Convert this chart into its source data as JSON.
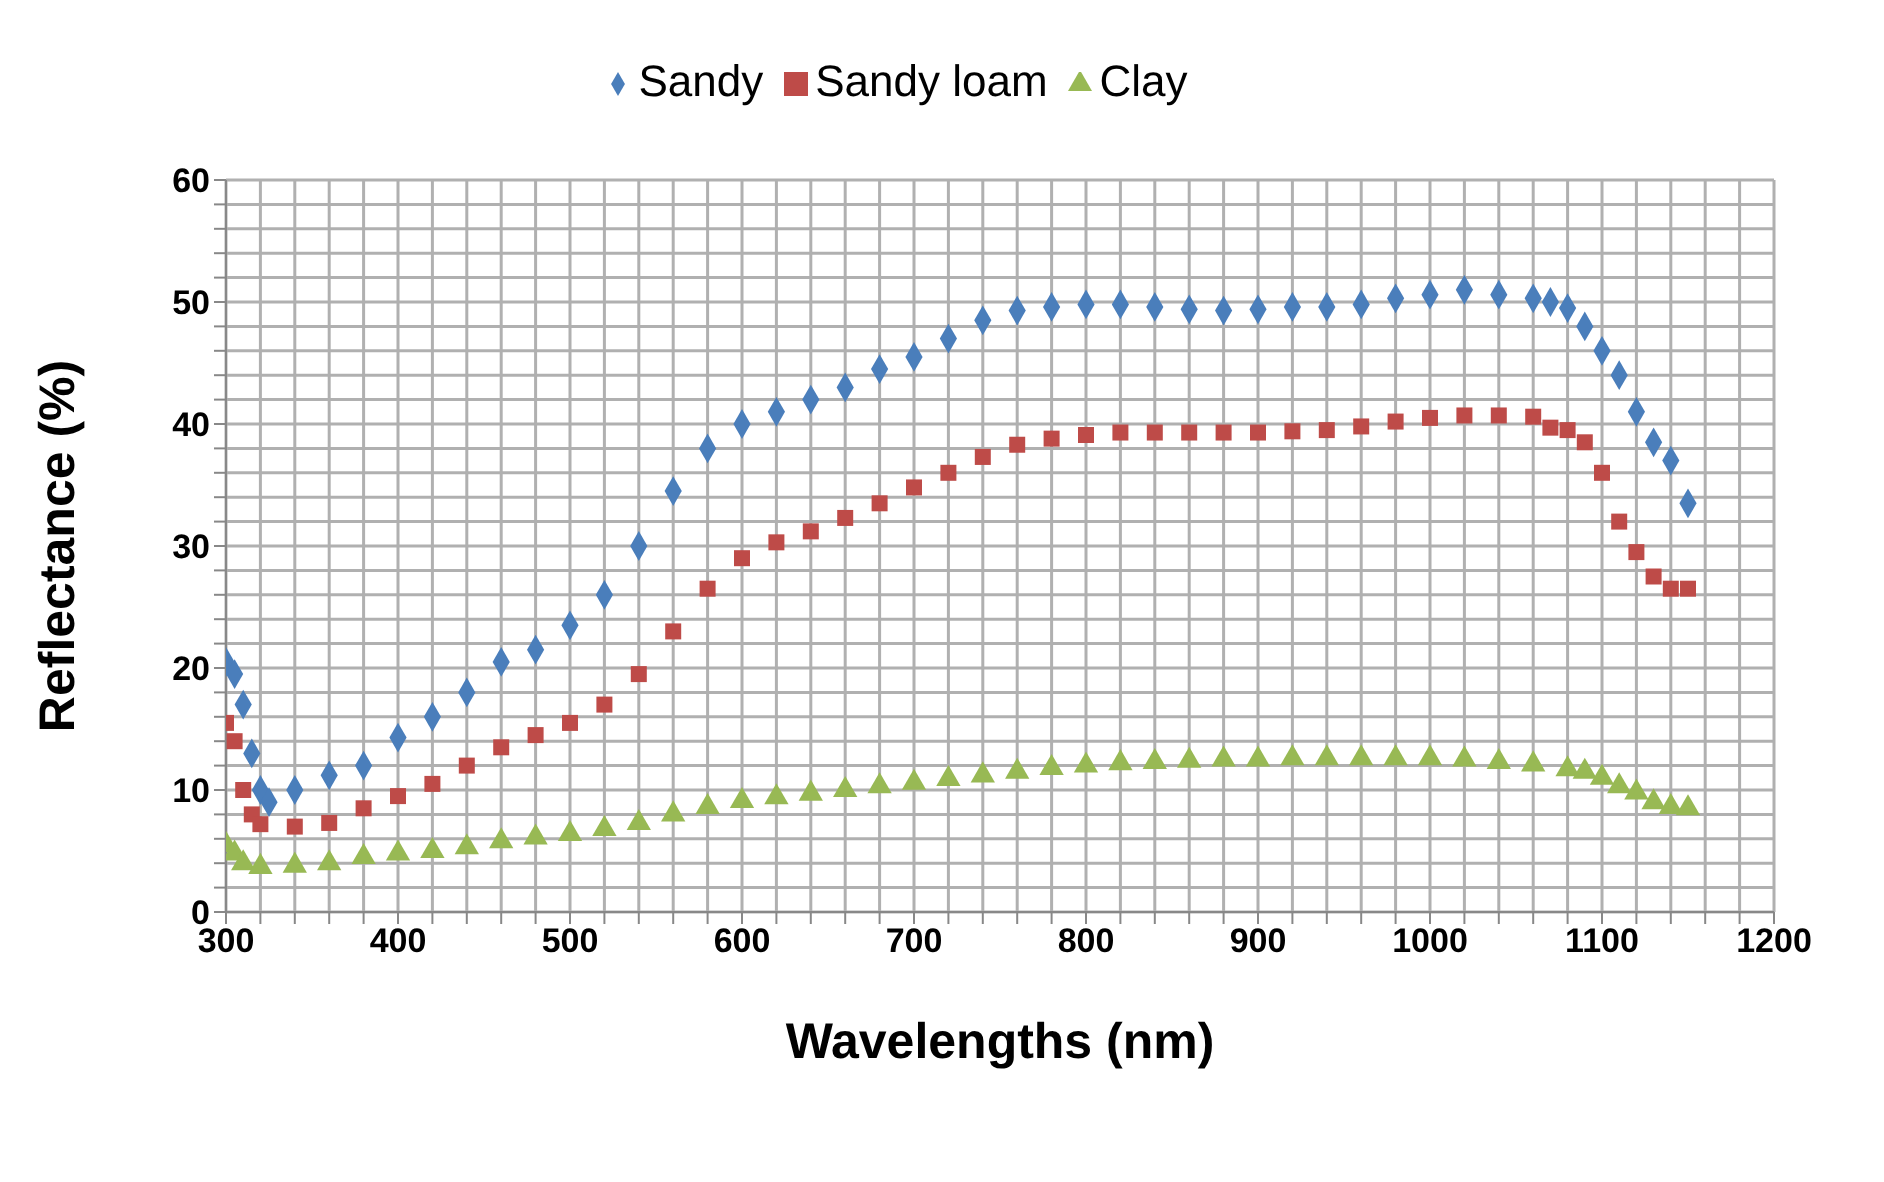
{
  "chart_data": {
    "type": "scatter",
    "xlabel": "Wavelengths (nm)",
    "ylabel": "Reflectance (%)",
    "xlim": [
      300,
      1200
    ],
    "ylim": [
      0,
      60
    ],
    "xticks": [
      300,
      {
        "value": 320,
        "label": null
      },
      {
        "value": 340,
        "label": null
      },
      {
        "value": 360,
        "label": null
      },
      {
        "value": 380,
        "label": null
      },
      400,
      {
        "value": 420,
        "label": null
      },
      {
        "value": 440,
        "label": null
      },
      {
        "value": 460,
        "label": null
      },
      {
        "value": 480,
        "label": null
      },
      500,
      {
        "value": 520,
        "label": null
      },
      {
        "value": 540,
        "label": null
      },
      {
        "value": 560,
        "label": null
      },
      {
        "value": 580,
        "label": null
      },
      600,
      {
        "value": 620,
        "label": null
      },
      {
        "value": 640,
        "label": null
      },
      {
        "value": 660,
        "label": null
      },
      {
        "value": 680,
        "label": null
      },
      700,
      {
        "value": 720,
        "label": null
      },
      {
        "value": 740,
        "label": null
      },
      {
        "value": 760,
        "label": null
      },
      {
        "value": 780,
        "label": null
      },
      800,
      {
        "value": 820,
        "label": null
      },
      {
        "value": 840,
        "label": null
      },
      {
        "value": 860,
        "label": null
      },
      {
        "value": 880,
        "label": null
      },
      900,
      {
        "value": 920,
        "label": null
      },
      {
        "value": 940,
        "label": null
      },
      {
        "value": 960,
        "label": null
      },
      {
        "value": 980,
        "label": null
      },
      1000,
      {
        "value": 1020,
        "label": null
      },
      {
        "value": 1040,
        "label": null
      },
      {
        "value": 1060,
        "label": null
      },
      {
        "value": 1080,
        "label": null
      },
      1100,
      {
        "value": 1120,
        "label": null
      },
      {
        "value": 1140,
        "label": null
      },
      {
        "value": 1160,
        "label": null
      },
      {
        "value": 1180,
        "label": null
      },
      1200
    ],
    "yticks": [
      0,
      {
        "value": 2,
        "label": null
      },
      {
        "value": 4,
        "label": null
      },
      {
        "value": 6,
        "label": null
      },
      {
        "value": 8,
        "label": null
      },
      10,
      {
        "value": 12,
        "label": null
      },
      {
        "value": 14,
        "label": null
      },
      {
        "value": 16,
        "label": null
      },
      {
        "value": 18,
        "label": null
      },
      20,
      {
        "value": 22,
        "label": null
      },
      {
        "value": 24,
        "label": null
      },
      {
        "value": 26,
        "label": null
      },
      {
        "value": 28,
        "label": null
      },
      30,
      {
        "value": 32,
        "label": null
      },
      {
        "value": 34,
        "label": null
      },
      {
        "value": 36,
        "label": null
      },
      {
        "value": 38,
        "label": null
      },
      40,
      {
        "value": 42,
        "label": null
      },
      {
        "value": 44,
        "label": null
      },
      {
        "value": 46,
        "label": null
      },
      {
        "value": 48,
        "label": null
      },
      50,
      {
        "value": 52,
        "label": null
      },
      {
        "value": 54,
        "label": null
      },
      {
        "value": 56,
        "label": null
      },
      {
        "value": 58,
        "label": null
      },
      60
    ],
    "grid": true,
    "legend": "top",
    "series": [
      {
        "name": "Sandy",
        "color": "#4a7ebb",
        "marker": "diamond",
        "x": [
          300,
          305,
          310,
          315,
          320,
          325,
          340,
          360,
          380,
          400,
          420,
          440,
          460,
          480,
          500,
          520,
          540,
          560,
          580,
          600,
          620,
          640,
          660,
          680,
          700,
          720,
          740,
          760,
          780,
          800,
          820,
          840,
          860,
          880,
          900,
          920,
          940,
          960,
          980,
          1000,
          1020,
          1040,
          1060,
          1070,
          1080,
          1090,
          1100,
          1110,
          1120,
          1130,
          1140,
          1150
        ],
        "values": [
          20.5,
          19.5,
          17,
          13,
          10,
          9,
          10,
          11.2,
          12,
          14.3,
          16,
          18,
          20.5,
          21.5,
          23.5,
          26,
          30,
          34.5,
          38,
          40,
          41,
          42,
          43,
          44.5,
          45.5,
          47,
          48.5,
          49.3,
          49.6,
          49.8,
          49.8,
          49.6,
          49.4,
          49.3,
          49.4,
          49.6,
          49.6,
          49.8,
          50.3,
          50.6,
          51,
          50.6,
          50.3,
          50,
          49.5,
          48,
          46,
          44,
          41,
          38.5,
          37,
          33.5
        ]
      },
      {
        "name": "Sandy loam",
        "color": "#be4b48",
        "marker": "square",
        "x": [
          300,
          305,
          310,
          315,
          320,
          340,
          360,
          380,
          400,
          420,
          440,
          460,
          480,
          500,
          520,
          540,
          560,
          580,
          600,
          620,
          640,
          660,
          680,
          700,
          720,
          740,
          760,
          780,
          800,
          820,
          840,
          860,
          880,
          900,
          920,
          940,
          960,
          980,
          1000,
          1020,
          1040,
          1060,
          1070,
          1080,
          1090,
          1100,
          1110,
          1120,
          1130,
          1140,
          1150
        ],
        "values": [
          15.5,
          14,
          10,
          8,
          7.2,
          7,
          7.3,
          8.5,
          9.5,
          10.5,
          12,
          13.5,
          14.5,
          15.5,
          17,
          19.5,
          23,
          26.5,
          29,
          30.3,
          31.2,
          32.3,
          33.5,
          34.8,
          36,
          37.3,
          38.3,
          38.8,
          39.1,
          39.3,
          39.3,
          39.3,
          39.3,
          39.3,
          39.4,
          39.5,
          39.8,
          40.2,
          40.5,
          40.7,
          40.7,
          40.6,
          39.7,
          39.5,
          38.5,
          36,
          32,
          29.5,
          27.5,
          26.5,
          26.5
        ]
      },
      {
        "name": "Clay",
        "color": "#98b954",
        "marker": "triangle",
        "x": [
          300,
          305,
          310,
          320,
          340,
          360,
          380,
          400,
          420,
          440,
          460,
          480,
          500,
          520,
          540,
          560,
          580,
          600,
          620,
          640,
          660,
          680,
          700,
          720,
          740,
          760,
          780,
          800,
          820,
          840,
          860,
          880,
          900,
          920,
          940,
          960,
          980,
          1000,
          1020,
          1040,
          1060,
          1080,
          1090,
          1100,
          1110,
          1120,
          1130,
          1140,
          1150
        ],
        "values": [
          5.5,
          4.8,
          4,
          3.7,
          3.8,
          4,
          4.5,
          4.8,
          5,
          5.3,
          5.8,
          6.1,
          6.4,
          6.8,
          7.3,
          8,
          8.6,
          9.1,
          9.4,
          9.7,
          10,
          10.3,
          10.6,
          10.9,
          11.2,
          11.5,
          11.8,
          12,
          12.2,
          12.3,
          12.4,
          12.5,
          12.5,
          12.6,
          12.6,
          12.6,
          12.6,
          12.6,
          12.5,
          12.3,
          12.1,
          11.7,
          11.5,
          11,
          10.3,
          9.8,
          9,
          8.6,
          8.5
        ]
      }
    ]
  }
}
